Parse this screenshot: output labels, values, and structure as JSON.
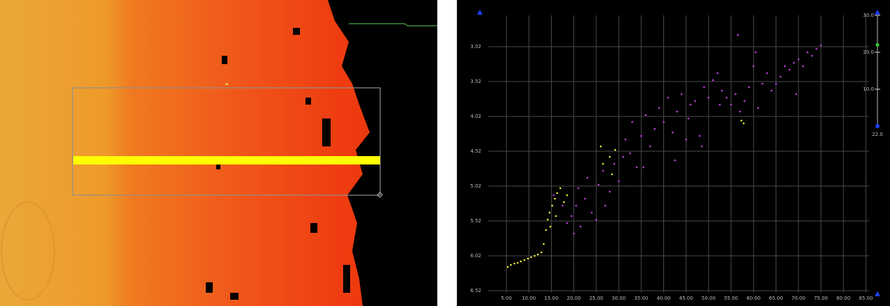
{
  "chart_data": {
    "type": "scatter",
    "xlim": [
      -4.94,
      88.2
    ],
    "ylim": [
      6.65,
      2.53
    ],
    "xticks": [
      {
        "value": 5,
        "label": "5.00"
      },
      {
        "value": 10,
        "label": "10.00"
      },
      {
        "value": 15,
        "label": "15.00"
      },
      {
        "value": 20,
        "label": "20.00"
      },
      {
        "value": 25,
        "label": "25.00"
      },
      {
        "value": 30,
        "label": "30.00"
      },
      {
        "value": 35,
        "label": "35.00"
      },
      {
        "value": 40,
        "label": "40.00"
      },
      {
        "value": 45,
        "label": "45.00"
      },
      {
        "value": 50,
        "label": "50.00"
      },
      {
        "value": 55,
        "label": "55.00"
      },
      {
        "value": 60,
        "label": "60.00"
      },
      {
        "value": 65,
        "label": "65.00"
      },
      {
        "value": 70,
        "label": "70.00"
      },
      {
        "value": 75,
        "label": "75.00"
      },
      {
        "value": 80,
        "label": "80.00"
      },
      {
        "value": 85,
        "label": "85.00"
      }
    ],
    "yticks": [
      3.02,
      3.52,
      4.02,
      4.52,
      5.02,
      5.52,
      6.02,
      6.52
    ],
    "grid": true,
    "series": [
      {
        "color": "#c040e0",
        "x": [
          15.5,
          17.5,
          18.5,
          19.5,
          20.5,
          21.0,
          21.5,
          22.5,
          23.0,
          24.0,
          25.0,
          25.5,
          26.5,
          27.0,
          28.0,
          29.0,
          30.0,
          31.0,
          31.5,
          32.5,
          33.0,
          34.0,
          35.0,
          36.0,
          37.0,
          38.0,
          39.0,
          40.0,
          41.0,
          42.0,
          43.0,
          44.0,
          45.0,
          45.5,
          46.0,
          47.0,
          48.0,
          48.5,
          49.0,
          50.0,
          51.0,
          52.0,
          52.5,
          53.0,
          54.0,
          55.0,
          56.0,
          57.0,
          58.0,
          59.0,
          60.0,
          60.5,
          61.0,
          62.0,
          63.0,
          64.0,
          65.0,
          66.0,
          67.0,
          68.0,
          69.0,
          70.0,
          71.0,
          72.0,
          73.0,
          74.0,
          75.0,
          69.5,
          42.5,
          35.5,
          20.0,
          56.5
        ],
        "values": [
          5.15,
          5.3,
          5.55,
          5.45,
          5.3,
          5.05,
          5.6,
          5.2,
          4.9,
          5.4,
          5.5,
          5.0,
          4.8,
          5.3,
          5.1,
          4.7,
          4.95,
          4.6,
          4.35,
          4.55,
          4.1,
          4.75,
          4.3,
          4.0,
          4.45,
          4.2,
          3.9,
          4.1,
          3.75,
          4.25,
          3.95,
          3.7,
          4.35,
          4.05,
          3.85,
          3.8,
          4.3,
          4.45,
          3.6,
          3.75,
          3.5,
          3.4,
          3.85,
          3.65,
          3.75,
          3.85,
          3.7,
          3.95,
          3.8,
          3.6,
          3.3,
          3.1,
          3.9,
          3.55,
          3.4,
          3.65,
          3.55,
          3.45,
          3.3,
          3.35,
          3.25,
          3.2,
          3.3,
          3.1,
          3.15,
          3.05,
          3.0,
          3.7,
          4.65,
          4.75,
          5.7,
          2.85
        ]
      },
      {
        "color": "#f0f040",
        "x": [
          5.3,
          6.0,
          6.8,
          7.5,
          8.2,
          9.0,
          9.8,
          10.5,
          11.3,
          12.0,
          12.8,
          13.3,
          13.8,
          14.2,
          14.6,
          15.2,
          15.8,
          16.3,
          17.0,
          17.8,
          18.5,
          14.8,
          16.0,
          26.0,
          26.5,
          28.0,
          29.2,
          28.5,
          57.3,
          57.8
        ],
        "values": [
          6.18,
          6.15,
          6.13,
          6.12,
          6.1,
          6.08,
          6.06,
          6.04,
          6.02,
          6.0,
          5.97,
          5.85,
          5.65,
          5.5,
          5.4,
          5.3,
          5.2,
          5.12,
          5.05,
          5.25,
          5.15,
          5.6,
          5.45,
          4.45,
          4.7,
          4.6,
          4.5,
          4.85,
          4.08,
          4.12
        ]
      }
    ]
  },
  "depth_scale": {
    "range": [
      0,
      30
    ],
    "ticks": [
      {
        "value": 30,
        "label": "30.0"
      },
      {
        "value": 20,
        "label": "20.0"
      },
      {
        "value": 10,
        "label": "10.0"
      }
    ],
    "readout": {
      "value": 22,
      "label": "22.0"
    }
  }
}
